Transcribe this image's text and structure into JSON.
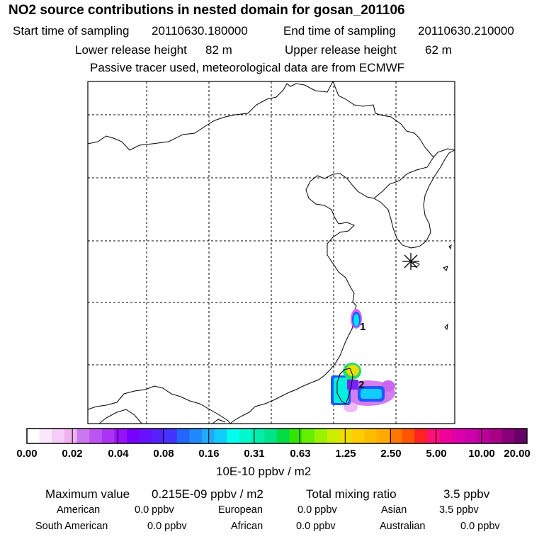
{
  "header": {
    "title": "NO2 source contributions in nested domain for gosan_201106",
    "start_label": "Start time of sampling",
    "start_value": "20110630.180000",
    "end_label": "End time of sampling",
    "end_value": "20110630.210000",
    "lower_label": "Lower release height",
    "lower_value": "82 m",
    "upper_label": "Upper release height",
    "upper_value": "62 m",
    "tracer_note": "Passive tracer used, meteorological data are from ECMWF"
  },
  "map": {
    "receptor_marker": "asterisk-icon",
    "source_labels": [
      "1",
      "2"
    ]
  },
  "colorbar": {
    "levels": [
      "0.00",
      "0.02",
      "0.04",
      "0.08",
      "0.16",
      "0.31",
      "0.63",
      "1.25",
      "2.50",
      "5.00",
      "10.00",
      "20.00"
    ],
    "unit": "10E-10 ppbv / m2",
    "colors": [
      "#ffffff",
      "#fbe6fb",
      "#f5ccf5",
      "#efb2ef",
      "#cc77ee",
      "#bb55f2",
      "#aa33f6",
      "#9911fa",
      "#7700ff",
      "#6611ff",
      "#5522ff",
      "#4433ff",
      "#2266ff",
      "#2288ff",
      "#22aaff",
      "#11ccff",
      "#00ffee",
      "#00f8cc",
      "#00eeaa",
      "#00e488",
      "#00dd44",
      "#33e600",
      "#66ee00",
      "#99f200",
      "#ccee00",
      "#eedd00",
      "#ffcc00",
      "#ffbb00",
      "#ffaa00",
      "#ff7700",
      "#ff5500",
      "#ff2222",
      "#ff1177",
      "#ee0099",
      "#dd00aa",
      "#cc00aa",
      "#bb0099",
      "#aa0088",
      "#880077",
      "#660066"
    ]
  },
  "footer": {
    "max_label": "Maximum value",
    "max_value": "0.215E-09 ppbv / m2",
    "total_label": "Total mixing ratio",
    "total_value": "3.5 ppbv",
    "regions": [
      {
        "name": "American",
        "value": "0.0 ppbv"
      },
      {
        "name": "European",
        "value": "0.0 ppbv"
      },
      {
        "name": "Asian",
        "value": "3.5 ppbv"
      },
      {
        "name": "South American",
        "value": "0.0 ppbv"
      },
      {
        "name": "African",
        "value": "0.0 ppbv"
      },
      {
        "name": "Australian",
        "value": "0.0 ppbv"
      }
    ]
  }
}
